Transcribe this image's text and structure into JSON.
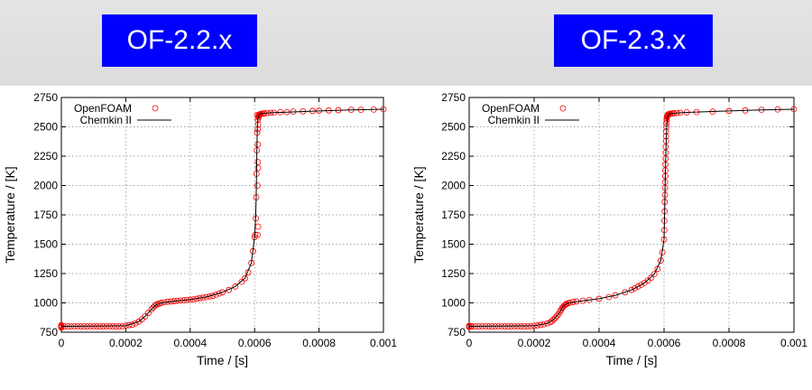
{
  "titles": {
    "left": "OF-2.2.x",
    "right": "OF-2.3.x"
  },
  "colors": {
    "banner": "#0000ff",
    "openfoam": "#ff0000",
    "chemkin": "#000000"
  },
  "chart_data": [
    {
      "type": "line",
      "title": "OF-2.2.x",
      "xlabel": "Time / [s]",
      "ylabel": "Temperature / [K]",
      "xlim": [
        0,
        0.001
      ],
      "ylim": [
        750,
        2750
      ],
      "xticks": [
        0,
        0.0002,
        0.0004,
        0.0006,
        0.0008,
        0.001
      ],
      "xtick_labels": [
        "0",
        "0.0002",
        "0.0004",
        "0.0006",
        "0.0008",
        "0.001"
      ],
      "yticks": [
        750,
        1000,
        1250,
        1500,
        1750,
        2000,
        2250,
        2500,
        2750
      ],
      "grid": true,
      "legend": "top-left",
      "series": [
        {
          "name": "OpenFOAM",
          "style": "markers",
          "color": "#ff0000",
          "x": [
            0,
            0,
            0,
            0,
            0,
            1e-05,
            2e-05,
            3e-05,
            4e-05,
            5e-05,
            6e-05,
            7e-05,
            8e-05,
            9e-05,
            0.0001,
            0.00011,
            0.00012,
            0.00013,
            0.00014,
            0.00015,
            0.00016,
            0.00017,
            0.00018,
            0.00019,
            0.0002,
            0.00021,
            0.00022,
            0.00023,
            0.00024,
            0.00025,
            0.00026,
            0.00027,
            0.00028,
            0.000285,
            0.00029,
            0.000295,
            0.0003,
            0.000305,
            0.00031,
            0.00032,
            0.00033,
            0.00034,
            0.00035,
            0.00036,
            0.00037,
            0.00038,
            0.00039,
            0.0004,
            0.00041,
            0.00042,
            0.00043,
            0.00044,
            0.00045,
            0.00046,
            0.00047,
            0.00048,
            0.00049,
            0.0005,
            0.00052,
            0.00054,
            0.00056,
            0.00057,
            0.00058,
            0.00059,
            0.000595,
            0.0006,
            0.000602,
            0.000604,
            0.000605,
            0.000606,
            0.000607,
            0.000608,
            0.000608,
            0.000609,
            0.000609,
            0.00061,
            0.00061,
            0.00061,
            0.00061,
            0.000611,
            0.000611,
            0.000611,
            0.000612,
            0.000612,
            0.000613,
            0.000614,
            0.000615,
            0.000616,
            0.000618,
            0.00062,
            0.000625,
            0.00063,
            0.00064,
            0.00065,
            0.00066,
            0.00068,
            0.0007,
            0.00072,
            0.00075,
            0.00078,
            0.0008,
            0.00083,
            0.00086,
            0.0009,
            0.00093,
            0.00097,
            0.001
          ],
          "y": [
            800,
            790,
            810,
            795,
            805,
            800,
            800,
            800,
            800,
            800,
            800,
            800,
            800,
            800,
            800,
            800,
            800,
            800,
            800,
            800,
            800,
            800,
            800,
            800,
            805,
            810,
            815,
            825,
            840,
            860,
            885,
            915,
            945,
            960,
            975,
            985,
            990,
            995,
            1000,
            1005,
            1010,
            1012,
            1015,
            1018,
            1020,
            1022,
            1025,
            1028,
            1030,
            1035,
            1040,
            1045,
            1050,
            1055,
            1060,
            1070,
            1080,
            1090,
            1110,
            1140,
            1180,
            1210,
            1260,
            1340,
            1440,
            1560,
            1580,
            1720,
            1900,
            2100,
            2300,
            2450,
            2600,
            1580,
            2000,
            2200,
            2350,
            2480,
            2560,
            1650,
            2150,
            2520,
            2580,
            2590,
            2600,
            2600,
            2605,
            2605,
            2608,
            2610,
            2612,
            2615,
            2618,
            2620,
            2620,
            2625,
            2625,
            2630,
            2632,
            2635,
            2638,
            2640,
            2642,
            2645,
            2645,
            2647,
            2650
          ]
        },
        {
          "name": "Chemkin II",
          "style": "line",
          "color": "#000000",
          "x": [
            0,
            0.0002,
            0.00024,
            0.00026,
            0.00027,
            0.00028,
            0.00029,
            0.0003,
            0.00031,
            0.00035,
            0.0004,
            0.00045,
            0.0005,
            0.00054,
            0.00057,
            0.00059,
            0.0006,
            0.000603,
            0.000605,
            0.000607,
            0.000608,
            0.000609,
            0.00061,
            0.000611,
            0.000613,
            0.000616,
            0.00062,
            0.00065,
            0.0007,
            0.0008,
            0.0009,
            0.001
          ],
          "y": [
            800,
            805,
            840,
            885,
            915,
            945,
            975,
            990,
            1000,
            1015,
            1028,
            1050,
            1090,
            1140,
            1210,
            1340,
            1560,
            1720,
            1900,
            2300,
            2450,
            2520,
            2560,
            2580,
            2595,
            2605,
            2612,
            2620,
            2625,
            2635,
            2645,
            2650
          ]
        }
      ]
    },
    {
      "type": "line",
      "title": "OF-2.3.x",
      "xlabel": "Time / [s]",
      "ylabel": "Temperature / [K]",
      "xlim": [
        0,
        0.001
      ],
      "ylim": [
        750,
        2750
      ],
      "xticks": [
        0,
        0.0002,
        0.0004,
        0.0006,
        0.0008,
        0.001
      ],
      "xtick_labels": [
        "0",
        "0.0002",
        "0.0004",
        "0.0006",
        "0.0008",
        "0.001"
      ],
      "yticks": [
        750,
        1000,
        1250,
        1500,
        1750,
        2000,
        2250,
        2500,
        2750
      ],
      "grid": true,
      "legend": "top-left",
      "series": [
        {
          "name": "OpenFOAM",
          "style": "markers",
          "color": "#ff0000",
          "x": [
            0,
            0,
            0,
            5e-06,
            1e-05,
            2e-05,
            3e-05,
            4e-05,
            5e-05,
            6e-05,
            7e-05,
            8e-05,
            9e-05,
            0.0001,
            0.00011,
            0.00012,
            0.00013,
            0.00014,
            0.00015,
            0.00016,
            0.00017,
            0.00018,
            0.00019,
            0.0002,
            0.00021,
            0.00022,
            0.00023,
            0.00024,
            0.00025,
            0.000255,
            0.00026,
            0.000265,
            0.00027,
            0.000275,
            0.00028,
            0.000283,
            0.000286,
            0.000289,
            0.000292,
            0.000295,
            0.000298,
            0.0003,
            0.000305,
            0.00031,
            0.00032,
            0.00033,
            0.00035,
            0.00037,
            0.0004,
            0.00043,
            0.00045,
            0.00048,
            0.0005,
            0.00051,
            0.00052,
            0.00053,
            0.00054,
            0.00055,
            0.00056,
            0.00057,
            0.00058,
            0.00059,
            0.000595,
            0.0006,
            0.000601,
            0.000601,
            0.000602,
            0.000602,
            0.000603,
            0.000603,
            0.000603,
            0.000604,
            0.000604,
            0.000604,
            0.000605,
            0.000605,
            0.000605,
            0.000606,
            0.000606,
            0.000606,
            0.000607,
            0.000607,
            0.000608,
            0.000608,
            0.000609,
            0.00061,
            0.00061,
            0.000611,
            0.000612,
            0.000613,
            0.000615,
            0.000618,
            0.00062,
            0.000625,
            0.00063,
            0.00064,
            0.00065,
            0.00067,
            0.0007,
            0.00075,
            0.0008,
            0.00085,
            0.0009,
            0.00095,
            0.001
          ],
          "y": [
            800,
            805,
            795,
            800,
            800,
            800,
            800,
            800,
            800,
            800,
            800,
            800,
            800,
            800,
            800,
            800,
            800,
            800,
            800,
            800,
            800,
            800,
            800,
            805,
            808,
            812,
            818,
            825,
            835,
            845,
            858,
            872,
            888,
            905,
            925,
            940,
            955,
            965,
            975,
            982,
            988,
            992,
            997,
            1002,
            1008,
            1012,
            1018,
            1025,
            1035,
            1050,
            1065,
            1090,
            1110,
            1125,
            1140,
            1155,
            1170,
            1190,
            1215,
            1245,
            1290,
            1360,
            1430,
            1540,
            1620,
            1700,
            1780,
            1860,
            1920,
            1980,
            2030,
            2080,
            2130,
            2180,
            2230,
            2280,
            2330,
            2380,
            2420,
            2460,
            2500,
            2530,
            2555,
            2570,
            2582,
            2590,
            2596,
            2600,
            2603,
            2606,
            2608,
            2610,
            2612,
            2614,
            2616,
            2618,
            2620,
            2623,
            2626,
            2630,
            2635,
            2640,
            2645,
            2648,
            2650
          ]
        },
        {
          "name": "Chemkin II",
          "style": "line",
          "color": "#000000",
          "x": [
            0,
            0.0002,
            0.00024,
            0.00026,
            0.00027,
            0.00028,
            0.00029,
            0.0003,
            0.00031,
            0.00035,
            0.0004,
            0.00045,
            0.0005,
            0.00054,
            0.00057,
            0.00059,
            0.0006,
            0.000602,
            0.000604,
            0.000606,
            0.000608,
            0.00061,
            0.000612,
            0.000615,
            0.00062,
            0.00065,
            0.0007,
            0.0008,
            0.0009,
            0.001
          ],
          "y": [
            800,
            805,
            825,
            858,
            888,
            925,
            975,
            992,
            1002,
            1018,
            1035,
            1065,
            1110,
            1170,
            1245,
            1360,
            1540,
            1780,
            2080,
            2330,
            2500,
            2570,
            2596,
            2606,
            2612,
            2620,
            2626,
            2635,
            2645,
            2650
          ]
        }
      ]
    }
  ]
}
